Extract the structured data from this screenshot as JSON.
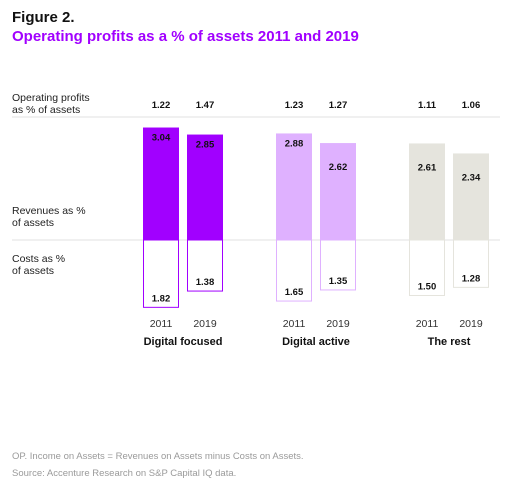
{
  "figure": {
    "label": "Figure 2.",
    "title": "Operating profits as a % of assets 2011 and 2019"
  },
  "row_labels": {
    "op": "Operating profits\nas % of assets",
    "revenue": "Revenues as %\nof assets",
    "cost": "Costs as %\nof assets"
  },
  "footnotes": {
    "definition": "OP. Income on Assets = Revenues on Assets minus Costs on Assets.",
    "source": "Source: Accenture Research on S&P Capital IQ data."
  },
  "chart_data": {
    "type": "bar",
    "groups": [
      {
        "name": "Digital focused",
        "color": "#a100ff",
        "years": [
          "2011",
          "2019"
        ],
        "operating_profit": [
          "1.22",
          "1.47"
        ],
        "revenues": [
          "3.04",
          "2.85"
        ],
        "costs": [
          "1.82",
          "1.38"
        ]
      },
      {
        "name": "Digital active",
        "color": "#dfb1ff",
        "years": [
          "2011",
          "2019"
        ],
        "operating_profit": [
          "1.23",
          "1.27"
        ],
        "revenues": [
          "2.88",
          "2.62"
        ],
        "costs": [
          "1.65",
          "1.35"
        ]
      },
      {
        "name": "The rest",
        "color": "#e5e4dd",
        "years": [
          "2011",
          "2019"
        ],
        "operating_profit": [
          "1.11",
          "1.06"
        ],
        "revenues": [
          "2.61",
          "2.34"
        ],
        "costs": [
          "1.50",
          "1.28"
        ]
      }
    ]
  }
}
